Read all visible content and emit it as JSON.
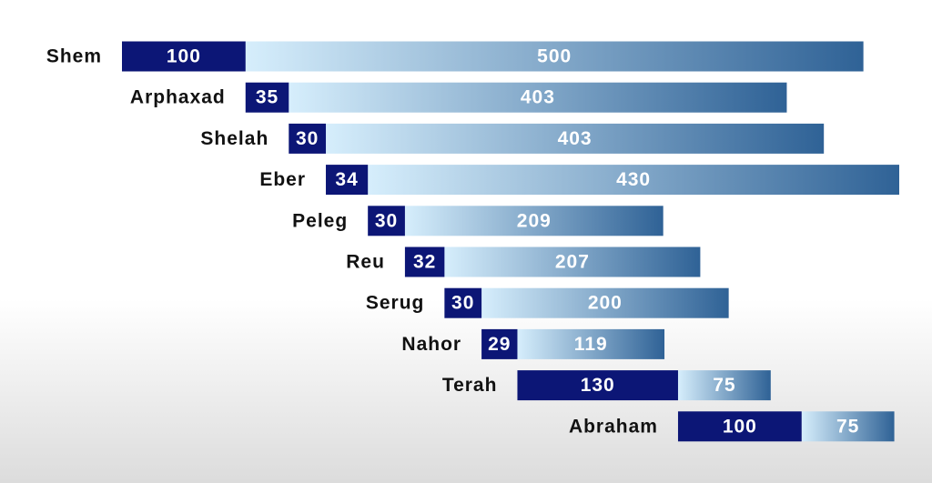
{
  "chart_data": {
    "type": "timeline",
    "categories": [
      "Shem",
      "Arphaxad",
      "Shelah",
      "Eber",
      "Peleg",
      "Reu",
      "Serug",
      "Nahor",
      "Terah",
      "Abraham"
    ],
    "series": [
      {
        "color": "#0c1676",
        "values": [
          100,
          35,
          30,
          34,
          30,
          32,
          30,
          29,
          130,
          100
        ]
      },
      {
        "color": [
          "#d6eefc",
          "#2f6296"
        ],
        "values": [
          500,
          403,
          403,
          430,
          209,
          207,
          200,
          119,
          75,
          75
        ]
      }
    ]
  }
}
